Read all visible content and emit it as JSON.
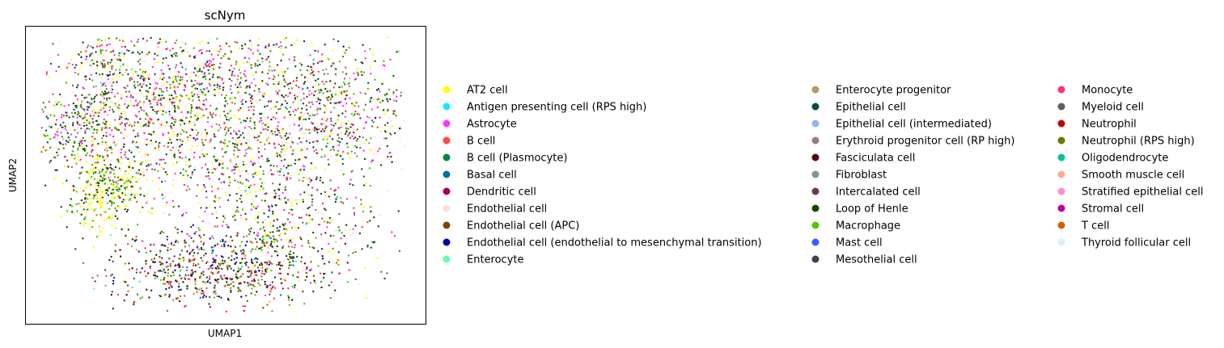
{
  "chart_data": {
    "type": "scatter",
    "title": "scNym",
    "xlabel": "UMAP1",
    "ylabel": "UMAP2",
    "xticks": [],
    "yticks": [],
    "grid": false,
    "legend_placement": "right",
    "legend": [
      {
        "label": "AT2 cell",
        "color": "#ffff00"
      },
      {
        "label": "Antigen presenting cell (RPS high)",
        "color": "#1ce6ff"
      },
      {
        "label": "Astrocyte",
        "color": "#ff34ff"
      },
      {
        "label": "B cell",
        "color": "#ff4a46"
      },
      {
        "label": "B cell (Plasmocyte)",
        "color": "#008941"
      },
      {
        "label": "Basal cell",
        "color": "#006fa6"
      },
      {
        "label": "Dendritic cell",
        "color": "#a30059"
      },
      {
        "label": "Endothelial cell",
        "color": "#ffdbe5"
      },
      {
        "label": "Endothelial cell (APC)",
        "color": "#7a4900"
      },
      {
        "label": "Endothelial cell (endothelial to mesenchymal transition)",
        "color": "#0000a6"
      },
      {
        "label": "Enterocyte",
        "color": "#63ffac"
      },
      {
        "label": "Enterocyte progenitor",
        "color": "#b79762"
      },
      {
        "label": "Epithelial cell",
        "color": "#004d43"
      },
      {
        "label": "Epithelial cell (intermediated)",
        "color": "#8fb0ff"
      },
      {
        "label": "Erythroid progenitor cell (RP high)",
        "color": "#997d87"
      },
      {
        "label": "Fasciculata cell",
        "color": "#5a0007"
      },
      {
        "label": "Fibroblast",
        "color": "#809693"
      },
      {
        "label": "Intercalated cell",
        "color": "#6a3a4c"
      },
      {
        "label": "Loop of Henle",
        "color": "#1b4400"
      },
      {
        "label": "Macrophage",
        "color": "#4fc601"
      },
      {
        "label": "Mast cell",
        "color": "#3b5dff"
      },
      {
        "label": "Mesothelial cell",
        "color": "#4a3b53"
      },
      {
        "label": "Monocyte",
        "color": "#ff2f80"
      },
      {
        "label": "Myeloid cell",
        "color": "#61615a"
      },
      {
        "label": "Neutrophil",
        "color": "#ba0900"
      },
      {
        "label": "Neutrophil (RPS high)",
        "color": "#6b7900"
      },
      {
        "label": "Oligodendrocyte",
        "color": "#00c2a0"
      },
      {
        "label": "Smooth muscle cell",
        "color": "#ffaa92"
      },
      {
        "label": "Stratified epithelial cell",
        "color": "#ff90c9"
      },
      {
        "label": "Stromal cell",
        "color": "#b903aa"
      },
      {
        "label": "T cell",
        "color": "#d16100"
      },
      {
        "label": "Thyroid follicular cell",
        "color": "#ddefff"
      }
    ]
  }
}
